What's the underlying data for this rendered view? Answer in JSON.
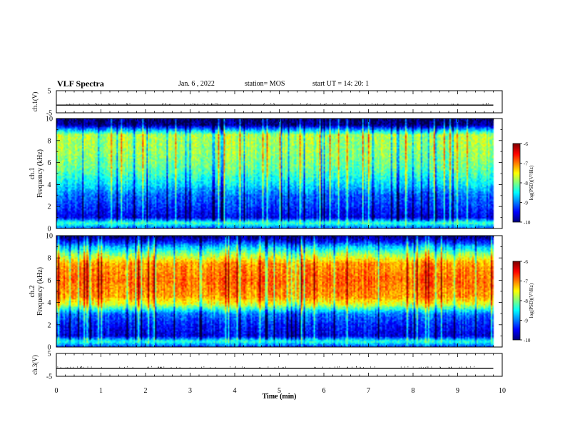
{
  "header": {
    "title": "VLF Spectra",
    "date": "Jan. 6 , 2022",
    "station": "station= MOS",
    "start_ut": "start UT = 14: 20: 1"
  },
  "chart_data": [
    {
      "type": "line",
      "name": "ch1-voltage",
      "ylabel": "ch.1(V)",
      "ylim": [
        -5,
        5
      ],
      "yticks": [
        "5",
        "-5"
      ],
      "x": [
        0,
        9.8
      ],
      "values": [
        -1.5,
        -1.5
      ],
      "color": "#000000"
    },
    {
      "type": "heatmap",
      "name": "ch1-spectrogram",
      "ylabel": "ch.1\nFrequency (kHz)",
      "ylim": [
        0,
        10
      ],
      "yticks": [
        "0",
        "2",
        "4",
        "6",
        "8",
        "10"
      ],
      "xlim": [
        0,
        10
      ],
      "data_end_min": 9.8,
      "colorbar": {
        "label": "log(PSD)(V²/Hz)",
        "range": [
          -10,
          -6
        ],
        "ticks": [
          "-6",
          "-7",
          "-8",
          "-9",
          "-10"
        ]
      },
      "profile": [
        {
          "f": 0.0,
          "v": -9.2
        },
        {
          "f": 0.5,
          "v": -8.2
        },
        {
          "f": 1.0,
          "v": -9.6
        },
        {
          "f": 2.0,
          "v": -9.3
        },
        {
          "f": 3.0,
          "v": -9.1
        },
        {
          "f": 4.0,
          "v": -8.6
        },
        {
          "f": 5.5,
          "v": -8.1
        },
        {
          "f": 7.0,
          "v": -7.9
        },
        {
          "f": 8.5,
          "v": -7.8
        },
        {
          "f": 9.0,
          "v": -8.9
        },
        {
          "f": 9.4,
          "v": -9.9
        },
        {
          "f": 10.0,
          "v": -10
        }
      ]
    },
    {
      "type": "heatmap",
      "name": "ch2-spectrogram",
      "ylabel": "ch.2\nFrequency (kHz)",
      "ylim": [
        0,
        10
      ],
      "yticks": [
        "0",
        "2",
        "4",
        "6",
        "8",
        "10"
      ],
      "xlim": [
        0,
        10
      ],
      "data_end_min": 9.8,
      "colorbar": {
        "label": "log(PSD)(V²/Hz)",
        "range": [
          -10,
          -6
        ],
        "ticks": [
          "-6",
          "-7",
          "-8",
          "-9",
          "-10"
        ]
      },
      "profile": [
        {
          "f": 0.0,
          "v": -9.3
        },
        {
          "f": 0.5,
          "v": -8.3
        },
        {
          "f": 1.0,
          "v": -9.6
        },
        {
          "f": 2.0,
          "v": -9.4
        },
        {
          "f": 3.0,
          "v": -9.0
        },
        {
          "f": 3.8,
          "v": -7.7
        },
        {
          "f": 4.5,
          "v": -7.1
        },
        {
          "f": 6.0,
          "v": -6.9
        },
        {
          "f": 7.5,
          "v": -7.1
        },
        {
          "f": 8.3,
          "v": -7.9
        },
        {
          "f": 9.0,
          "v": -8.7
        },
        {
          "f": 9.6,
          "v": -9.6
        },
        {
          "f": 10.0,
          "v": -10
        }
      ]
    },
    {
      "type": "line",
      "name": "ch3-voltage",
      "ylabel": "ch.3(V)",
      "ylim": [
        -5,
        5
      ],
      "yticks": [
        "5",
        "-5"
      ],
      "x": [
        0,
        9.8
      ],
      "values": [
        -1.5,
        -1.5
      ],
      "color": "#000000"
    }
  ],
  "x_axis": {
    "label": "Time (min)",
    "ticks": [
      "0",
      "1",
      "2",
      "3",
      "4",
      "5",
      "6",
      "7",
      "8",
      "9",
      "10"
    ],
    "range": [
      0,
      10
    ]
  }
}
